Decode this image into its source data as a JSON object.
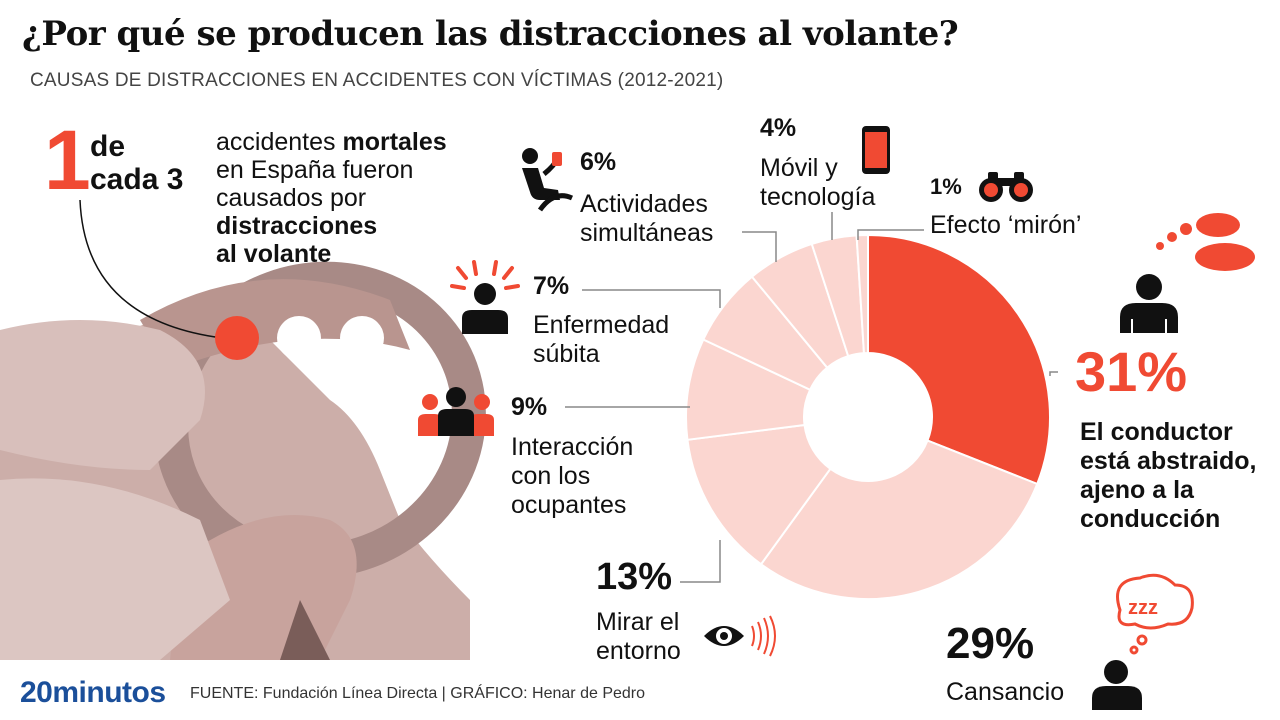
{
  "title": "¿Por qué se producen las distracciones al volante?",
  "subtitle": "CAUSAS DE DISTRACCIONES EN ACCIDENTES CON VÍCTIMAS (2012-2021)",
  "stat": {
    "number": "1",
    "de": "de",
    "cada": "cada 3",
    "line1_normal": "accidentes ",
    "line1_bold": "mortales",
    "line2": "en España fueron",
    "line3": "causados por",
    "line4_bold": "distracciones",
    "line5_bold": "al volante"
  },
  "chart_data": {
    "type": "pie",
    "donut": true,
    "title": "¿Por qué se producen las distracciones al volante?",
    "subtitle": "CAUSAS DE DISTRACCIONES EN ACCIDENTES CON VÍCTIMAS (2012-2021)",
    "unit": "%",
    "slices": [
      {
        "label": "El conductor está abstraido, ajeno a la conducción",
        "value": 31,
        "pct_label": "31%",
        "color": "#f04a33"
      },
      {
        "label": "Cansancio",
        "value": 29,
        "pct_label": "29%",
        "color": "#fbd6d0"
      },
      {
        "label": "Mirar el entorno",
        "value": 13,
        "pct_label": "13%",
        "color": "#fbd6d0"
      },
      {
        "label": "Interacción con los ocupantes",
        "value": 9,
        "pct_label": "9%",
        "color": "#fbd6d0"
      },
      {
        "label": "Enfermedad súbita",
        "value": 7,
        "pct_label": "7%",
        "color": "#fbd6d0"
      },
      {
        "label": "Actividades simultáneas",
        "value": 6,
        "pct_label": "6%",
        "color": "#fbd6d0"
      },
      {
        "label": "Móvil y tecnología",
        "value": 4,
        "pct_label": "4%",
        "color": "#fbd6d0"
      },
      {
        "label": "Efecto ‘mirón’",
        "value": 1,
        "pct_label": "1%",
        "color": "#fbd6d0"
      }
    ]
  },
  "labels": {
    "abstraido": [
      "El conductor",
      "está abstraido,",
      "ajeno a la",
      "conducción"
    ],
    "cansancio": [
      "Cansancio"
    ],
    "entorno": [
      "Mirar el",
      "entorno"
    ],
    "ocupantes": [
      "Interacción",
      "con los",
      "ocupantes"
    ],
    "enfermedad": [
      "Enfermedad",
      "súbita"
    ],
    "actividades": [
      "Actividades",
      "simultáneas"
    ],
    "movil": [
      "Móvil y",
      "tecnología"
    ],
    "miron": [
      "Efecto ‘mirón’"
    ]
  },
  "icons": {
    "abstraido": "person-thought-cloud-icon",
    "cansancio": "person-sleeping-zzz-icon",
    "entorno": "eye-icon",
    "ocupantes": "passengers-icon",
    "enfermedad": "person-sudden-illness-icon",
    "actividades": "driver-drinking-icon",
    "movil": "mobile-phone-icon",
    "miron": "binoculars-icon"
  },
  "colors": {
    "accent": "#f04a33",
    "light": "#fbd6d0",
    "brand": "#1b4f9a"
  },
  "footer": {
    "logo": "20minutos",
    "source": "FUENTE: Fundación Línea Directa  |  GRÁFICO: Henar de Pedro"
  }
}
